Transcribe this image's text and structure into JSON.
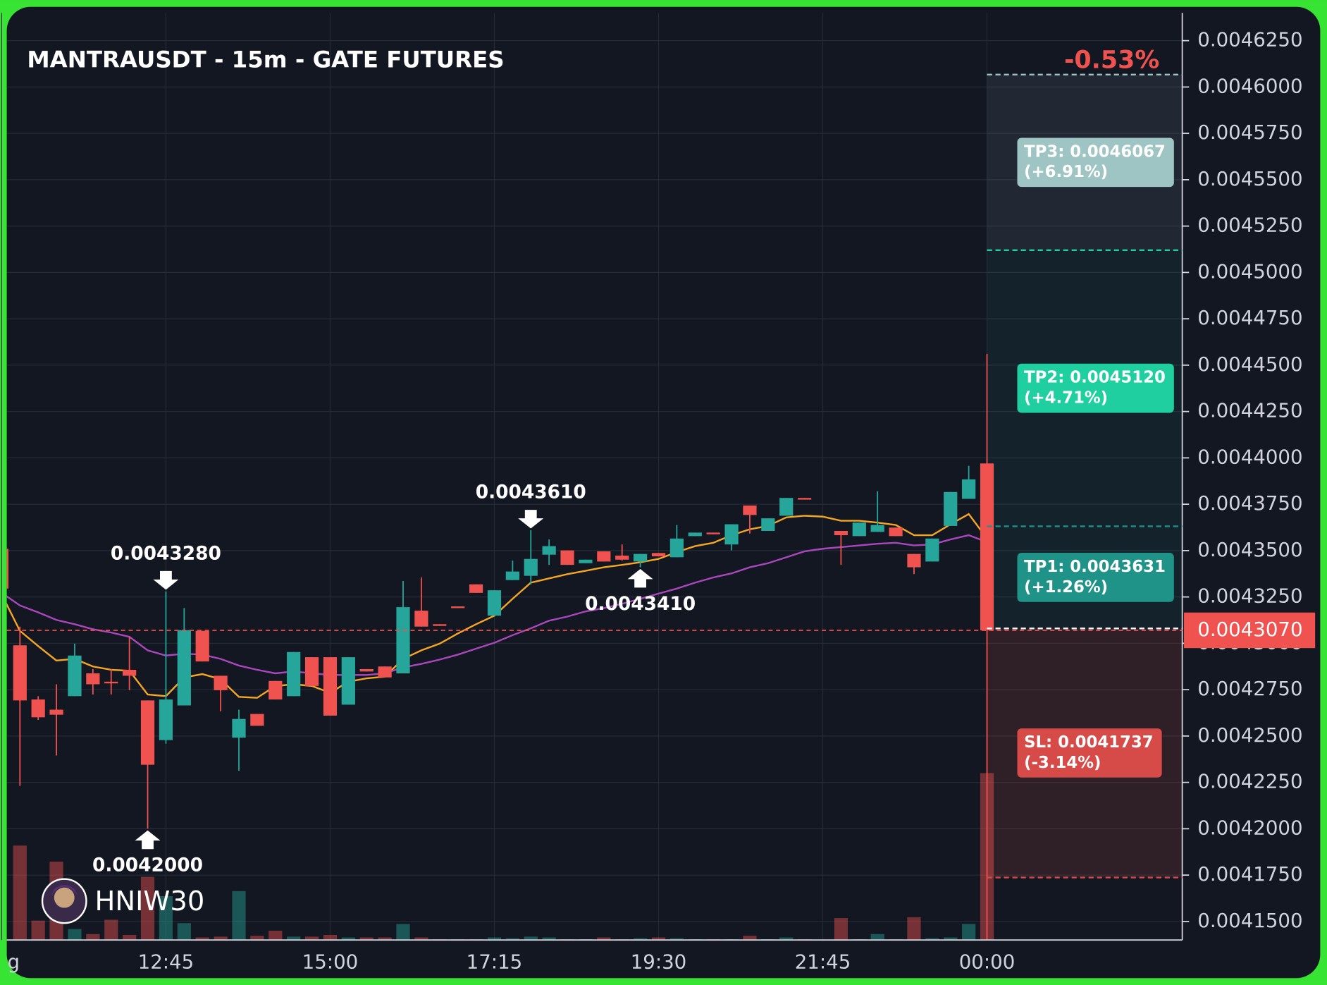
{
  "chart_data": {
    "type": "candlestick",
    "title": "MANTRAUSDT - 15m - GATE FUTURES",
    "change_label": "-0.53%",
    "watermark": "HNIW30",
    "up_color": "#26a69a",
    "down_color": "#f0524f",
    "grid": true,
    "categories": [
      "g",
      null,
      null,
      null,
      null,
      null,
      null,
      null,
      null,
      "12:45",
      null,
      null,
      null,
      null,
      null,
      null,
      null,
      null,
      "15:00",
      null,
      null,
      null,
      null,
      null,
      null,
      null,
      null,
      "17:15",
      null,
      null,
      null,
      null,
      null,
      null,
      null,
      null,
      "19:30",
      null,
      null,
      null,
      null,
      null,
      null,
      null,
      null,
      "21:45",
      null,
      null,
      null,
      null,
      null,
      null,
      null,
      null,
      "00:00"
    ],
    "open": [
      0.004351,
      0.0042989,
      0.0042697,
      0.0042642,
      0.0042715,
      0.0042838,
      0.0042793,
      0.0042857,
      0.0042692,
      0.0042478,
      0.0042665,
      0.0043067,
      0.0042825,
      0.0042491,
      0.0042619,
      0.0042797,
      0.0042715,
      0.0042925,
      0.0042925,
      0.0042669,
      0.0042861,
      0.0042875,
      0.0042838,
      0.0043176,
      0.0043103,
      0.0043199,
      0.0043318,
      0.0043149,
      0.0043341,
      0.0043364,
      0.0043478,
      0.0043501,
      0.0043432,
      0.0043496,
      0.0043473,
      0.0043441,
      0.0043487,
      0.0043464,
      0.0043578,
      0.0043597,
      0.0043533,
      0.0043743,
      0.0043606,
      0.0043688,
      0.0043784,
      null,
      0.0043606,
      0.0043578,
      0.0043601,
      0.0043624,
      0.0043482,
      0.0043441,
      0.0043633,
      0.0043779,
      0.004397
    ],
    "high": [
      0.0043524,
      0.004309,
      0.0042715,
      0.0042779,
      0.0042998,
      0.0042861,
      0.0042861,
      0.0043035,
      0.0042692,
      0.004328,
      0.004319,
      0.0043067,
      0.0042825,
      0.0042642,
      0.0042619,
      0.0042797,
      0.0042953,
      0.0042925,
      0.0042925,
      0.0042925,
      0.0042861,
      0.0042875,
      0.0043336,
      0.0043355,
      0.0043103,
      0.0043199,
      0.0043318,
      0.0043286,
      0.0043446,
      0.004361,
      0.004356,
      0.0043501,
      0.0043451,
      0.0043496,
      0.0043533,
      0.0043482,
      0.0043487,
      0.0043638,
      0.0043597,
      0.0043597,
      0.0043642,
      0.0043743,
      0.0043674,
      0.0043784,
      0.0043784,
      null,
      0.0043606,
      0.0043651,
      0.004382,
      0.0043624,
      0.0043482,
      0.0043565,
      0.0043816,
      0.0043957,
      0.004456
    ],
    "low": [
      0.0043272,
      0.0042231,
      0.0042587,
      0.0042395,
      0.0042715,
      0.0042724,
      0.0042724,
      0.0042747,
      0.0042,
      0.0042459,
      0.0042665,
      0.0042902,
      0.0042633,
      0.0042313,
      0.0042555,
      0.0042697,
      0.0042715,
      0.004277,
      0.004261,
      0.0042669,
      0.0042848,
      0.0042816,
      0.0042838,
      0.004309,
      0.0043094,
      0.004319,
      0.0043272,
      0.0043149,
      0.0043341,
      0.0043318,
      0.0043423,
      0.0043423,
      0.0043432,
      0.0043441,
      0.0043446,
      0.004341,
      0.0043469,
      0.0043464,
      0.0043578,
      0.0043588,
      0.0043501,
      0.0043592,
      0.0043606,
      0.0043688,
      0.0043775,
      null,
      0.0043423,
      0.0043578,
      0.0043601,
      0.0043578,
      0.0043373,
      0.0043441,
      0.0043633,
      0.0043779,
      0.00414
    ],
    "close": [
      0.0043295,
      0.0042692,
      0.0042601,
      0.0042615,
      0.0042934,
      0.0042779,
      0.0042784,
      0.0042825,
      0.0042345,
      0.0042697,
      0.0043071,
      0.0042902,
      0.0042747,
      0.0042592,
      0.0042555,
      0.0042697,
      0.0042953,
      0.004277,
      0.004261,
      0.0042925,
      0.0042848,
      0.0042816,
      0.0043195,
      0.004309,
      0.0043094,
      0.004319,
      0.0043272,
      0.0043286,
      0.0043387,
      0.0043455,
      0.0043524,
      0.0043423,
      0.0043451,
      0.0043441,
      0.0043451,
      0.0043482,
      0.0043469,
      0.0043565,
      0.0043597,
      0.0043588,
      0.0043642,
      0.0043692,
      0.0043674,
      0.0043784,
      0.0043775,
      null,
      0.0043583,
      0.0043651,
      0.0043638,
      0.0043578,
      0.004341,
      0.0043565,
      0.0043816,
      0.0043884,
      0.004307
    ],
    "volume": [
      0,
      112,
      23,
      93,
      13,
      7,
      24,
      6,
      75,
      52,
      20,
      3,
      4,
      58,
      5,
      11,
      4,
      4,
      6,
      3,
      3,
      3,
      19,
      3,
      1,
      1,
      1,
      3,
      2,
      4,
      3,
      1,
      1,
      3,
      1,
      2,
      3,
      2,
      1,
      1,
      1,
      5,
      1,
      3,
      1,
      null,
      26,
      1,
      7,
      1,
      27,
      2,
      3,
      19,
      198
    ],
    "volume_ylim": [
      0,
      1100
    ],
    "ma": [
      {
        "color": "#f5a623",
        "values": [
          0.0043263,
          0.0043067,
          0.0042985,
          0.0042907,
          0.0042916,
          0.0042875,
          0.0042857,
          0.0042852,
          0.0042724,
          0.0042715,
          0.0042816,
          0.0042834,
          0.0042806,
          0.0042711,
          0.0042706,
          0.004277,
          0.0042779,
          0.004277,
          0.0042733,
          0.0042793,
          0.0042811,
          0.004282,
          0.0042916,
          0.0042962,
          0.0042998,
          0.0043053,
          0.0043103,
          0.0043149,
          0.004324,
          0.0043327,
          0.004335,
          0.0043373,
          0.0043391,
          0.004341,
          0.0043423,
          0.0043437,
          0.0043455,
          0.0043492,
          0.0043524,
          0.0043542,
          0.0043583,
          0.0043615,
          0.0043633,
          0.0043679,
          0.0043688,
          0.0043683,
          0.0043661,
          0.0043661,
          0.0043651,
          0.0043638,
          0.0043583,
          0.0043583,
          0.0043642,
          0.0043697,
          0.0043565
        ]
      },
      {
        "color": "#ab47bc",
        "values": [
          0.0043272,
          0.0043204,
          0.0043167,
          0.0043126,
          0.0043103,
          0.0043076,
          0.0043058,
          0.0043035,
          0.0042962,
          0.0042934,
          0.0042944,
          0.0042939,
          0.0042916,
          0.004288,
          0.0042857,
          0.0042838,
          0.0042848,
          0.0042838,
          0.0042829,
          0.0042829,
          0.0042829,
          0.0042838,
          0.004287,
          0.0042889,
          0.0042912,
          0.0042939,
          0.0042971,
          0.0043003,
          0.0043044,
          0.0043081,
          0.0043122,
          0.0043144,
          0.0043172,
          0.004319,
          0.0043213,
          0.004324,
          0.0043268,
          0.0043295,
          0.0043327,
          0.0043355,
          0.0043377,
          0.004341,
          0.0043432,
          0.0043464,
          0.0043496,
          0.004351,
          0.0043519,
          0.0043528,
          0.0043537,
          0.0043542,
          0.0043528,
          0.0043533,
          0.004356,
          0.0043583,
          0.0043546
        ]
      }
    ],
    "annotations": [
      {
        "text": "0.0043280",
        "value": 0.004328,
        "kind": "high"
      },
      {
        "text": "0.0042000",
        "value": 0.0042,
        "kind": "low"
      },
      {
        "text": "0.0043610",
        "value": 0.004361,
        "kind": "high"
      },
      {
        "text": "0.0043410",
        "value": 0.004341,
        "kind": "low"
      }
    ],
    "entry": 0.004308,
    "last_price": {
      "value": 0.004307,
      "label": "0.0043070"
    },
    "levels": [
      {
        "label": "TP3: 0.0046067",
        "change": "(+6.91%)",
        "value": 0.0046067,
        "color": "#9ec5c3",
        "zone": "rgba(158,176,190,0.11)"
      },
      {
        "label": "TP2: 0.0045120",
        "change": "(+4.71%)",
        "value": 0.004512,
        "color": "#1fcf9f",
        "zone": "rgba(31,160,140,0.09)"
      },
      {
        "label": "TP1: 0.0043631",
        "change": "(+1.26%)",
        "value": 0.0043631,
        "color": "#1f9387",
        "zone": "rgba(31,160,140,0.09)"
      },
      {
        "label": "SL: 0.0041737",
        "change": "(-3.14%)",
        "value": 0.0041737,
        "color": "#d64a48",
        "zone": "rgba(240,82,79,0.13)"
      }
    ],
    "ylim": [
      0.00414,
      0.00464
    ],
    "yticks": [
      {
        "value": 0.00415,
        "label": "0.0041500"
      },
      {
        "value": 0.004175,
        "label": "0.0041750"
      },
      {
        "value": 0.0042,
        "label": "0.0042000"
      },
      {
        "value": 0.004225,
        "label": "0.0042250"
      },
      {
        "value": 0.00425,
        "label": "0.0042500"
      },
      {
        "value": 0.004275,
        "label": "0.0042750"
      },
      {
        "value": 0.0043,
        "label": "0.0043000"
      },
      {
        "value": 0.004325,
        "label": "0.0043250"
      },
      {
        "value": 0.00435,
        "label": "0.0043500"
      },
      {
        "value": 0.004375,
        "label": "0.0043750"
      },
      {
        "value": 0.0044,
        "label": "0.0044000"
      },
      {
        "value": 0.004425,
        "label": "0.0044250"
      },
      {
        "value": 0.00445,
        "label": "0.0044500"
      },
      {
        "value": 0.004475,
        "label": "0.0044750"
      },
      {
        "value": 0.0045,
        "label": "0.0045000"
      },
      {
        "value": 0.004525,
        "label": "0.0045250"
      },
      {
        "value": 0.00455,
        "label": "0.0045500"
      },
      {
        "value": 0.004575,
        "label": "0.0045750"
      },
      {
        "value": 0.0046,
        "label": "0.0046000"
      },
      {
        "value": 0.004625,
        "label": "0.0046250"
      }
    ]
  }
}
